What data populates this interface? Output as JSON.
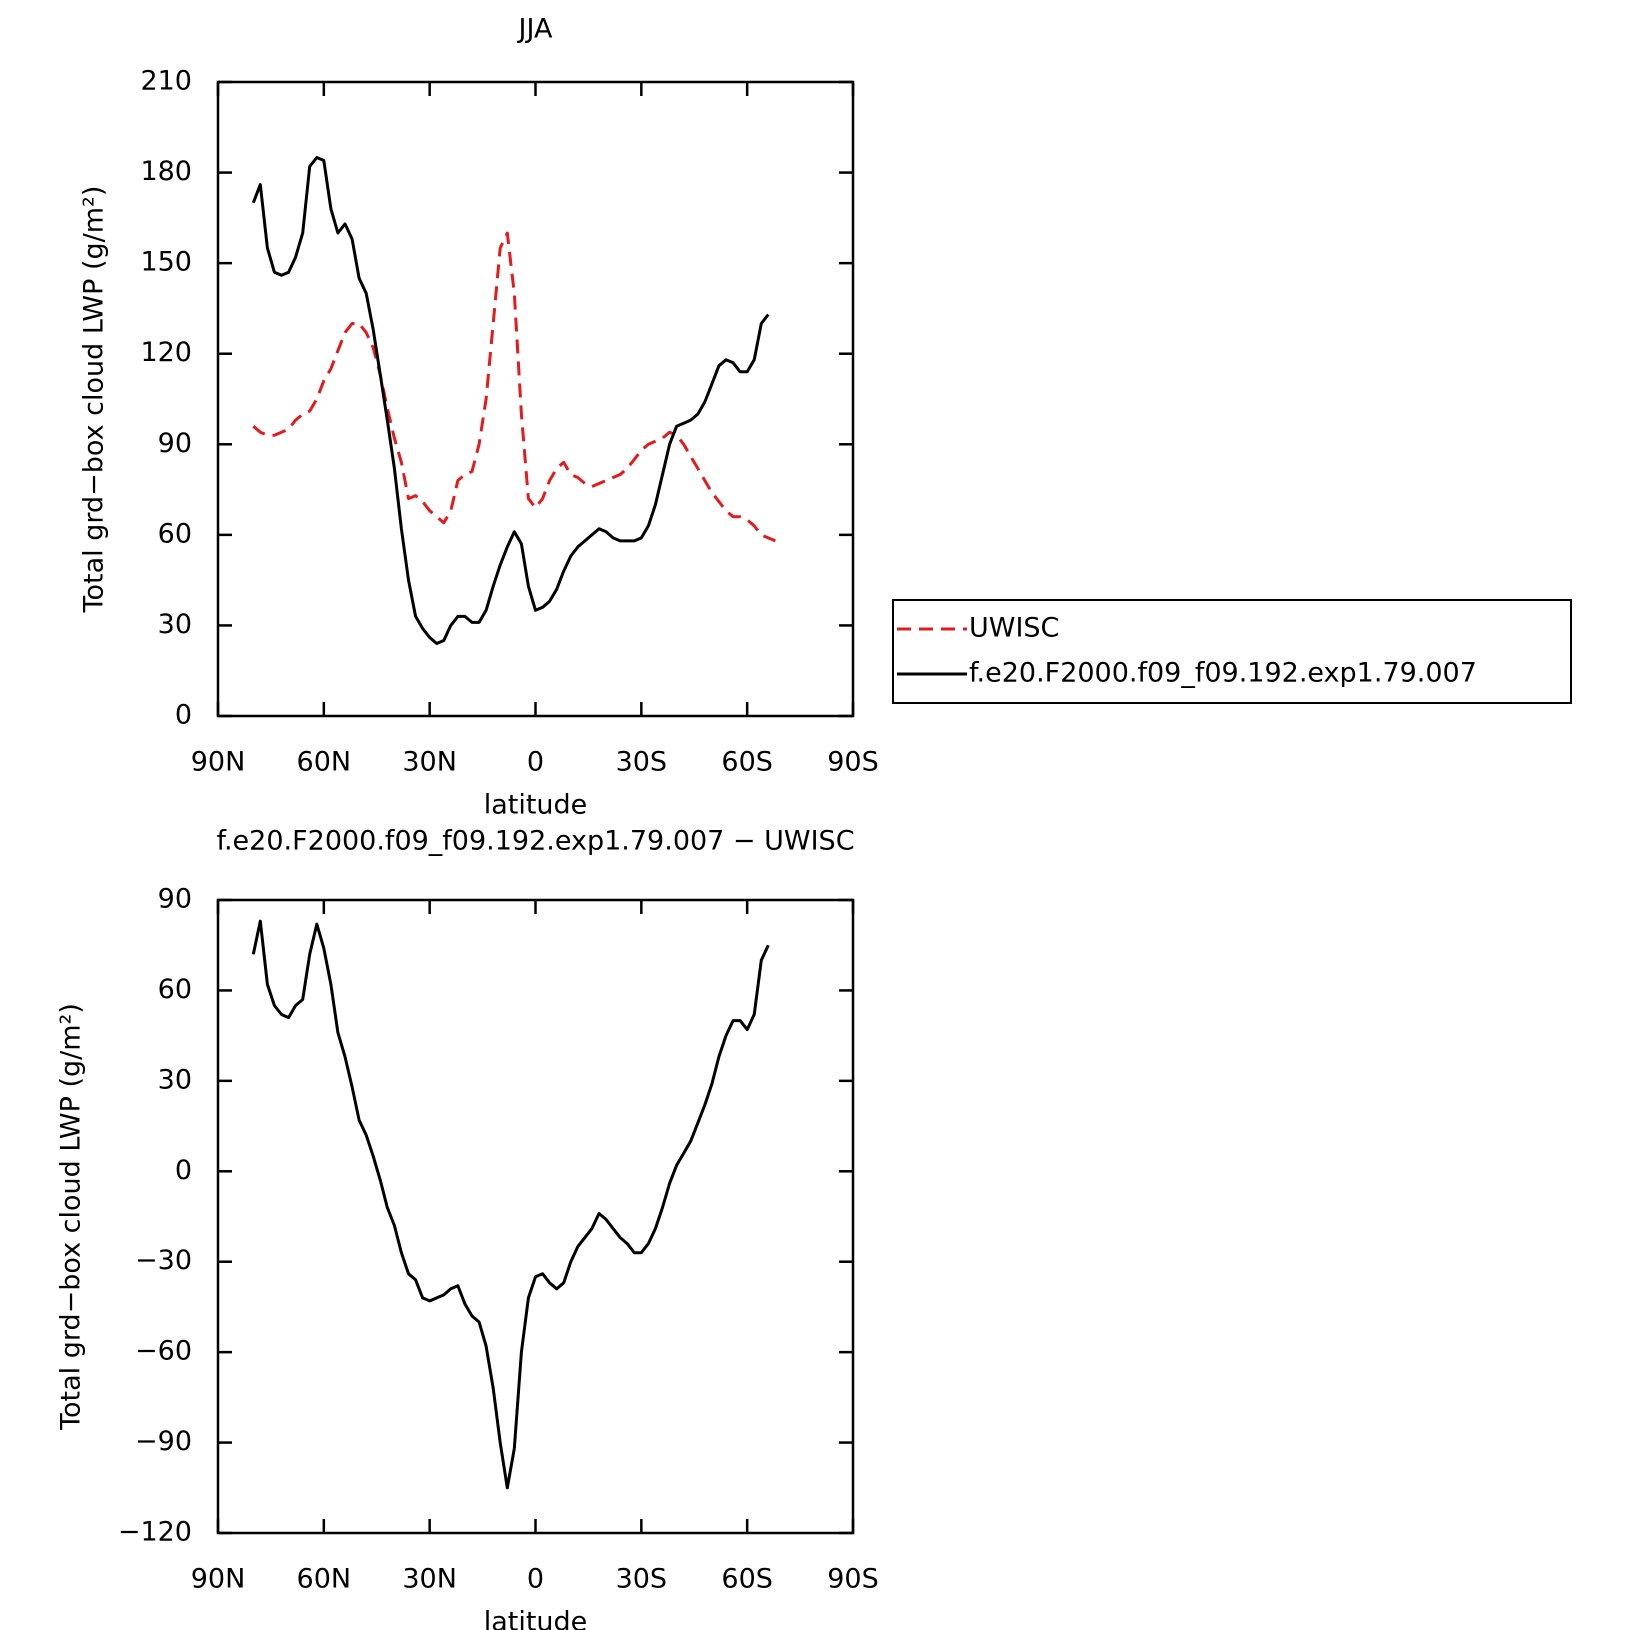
{
  "chart_data": [
    {
      "type": "line",
      "title": "JJA",
      "xlabel": "latitude",
      "ylabel": "Total grd−box cloud LWP (g/m²)",
      "xlim": [
        90,
        -90
      ],
      "ylim": [
        0,
        210
      ],
      "xticks": [
        {
          "value": 90,
          "label": "90N"
        },
        {
          "value": 60,
          "label": "60N"
        },
        {
          "value": 30,
          "label": "30N"
        },
        0,
        {
          "value": -30,
          "label": "30S"
        },
        {
          "value": -60,
          "label": "60S"
        },
        {
          "value": -90,
          "label": "90S"
        }
      ],
      "yticks": [
        0,
        30,
        60,
        90,
        120,
        150,
        180,
        210
      ],
      "legend": "outside-right",
      "x": [
        80,
        78,
        76,
        74,
        72,
        70,
        68,
        66,
        64,
        62,
        60,
        58,
        56,
        54,
        52,
        50,
        48,
        46,
        44,
        42,
        40,
        38,
        36,
        34,
        32,
        30,
        28,
        26,
        24,
        22,
        20,
        18,
        16,
        14,
        12,
        10,
        8,
        6,
        4,
        2,
        0,
        -2,
        -4,
        -6,
        -8,
        -10,
        -12,
        -14,
        -16,
        -18,
        -20,
        -22,
        -24,
        -26,
        -28,
        -30,
        -32,
        -34,
        -36,
        -38,
        -40,
        -42,
        -44,
        -46,
        -48,
        -50,
        -52,
        -54,
        -56,
        -58,
        -60,
        -62,
        -64,
        -66,
        -68
      ],
      "series": [
        {
          "name": "UWISC",
          "color": "#e41a1c",
          "dash": "dashed",
          "values": [
            96,
            94,
            93,
            93,
            94,
            95,
            98,
            100,
            101,
            105,
            111,
            115,
            121,
            127,
            130,
            130,
            127,
            122,
            113,
            102,
            92,
            84,
            72,
            73,
            71,
            68,
            66,
            64,
            68,
            78,
            80,
            81,
            90,
            105,
            130,
            155,
            160,
            140,
            100,
            72,
            69,
            72,
            78,
            82,
            84,
            80,
            79,
            77,
            76,
            77,
            78,
            79,
            80,
            82,
            85,
            88,
            90,
            91,
            92,
            94,
            93,
            90,
            86,
            82,
            78,
            74,
            71,
            68,
            66,
            66,
            65,
            63,
            60,
            59,
            58
          ]
        },
        {
          "name": "f.e20.F2000.f09_f09.192.exp1.79.007",
          "color": "#000000",
          "dash": "solid",
          "values": [
            170,
            176,
            155,
            147,
            146,
            147,
            152,
            160,
            182,
            185,
            184,
            168,
            160,
            163,
            158,
            145,
            140,
            128,
            113,
            98,
            82,
            62,
            45,
            33,
            29,
            26,
            24,
            25,
            30,
            33,
            33,
            31,
            31,
            35,
            43,
            50,
            56,
            61,
            57,
            43,
            35,
            36,
            38,
            42,
            48,
            53,
            56,
            58,
            60,
            62,
            61,
            59,
            58,
            58,
            58,
            59,
            63,
            70,
            80,
            90,
            96,
            97,
            98,
            100,
            104,
            110,
            116,
            118,
            117,
            114,
            114,
            118,
            130,
            133,
            null
          ]
        }
      ]
    },
    {
      "type": "line",
      "title": "f.e20.F2000.f09_f09.192.exp1.79.007 − UWISC",
      "xlabel": "latitude",
      "ylabel": "Total grd−box cloud LWP (g/m²)",
      "xlim": [
        90,
        -90
      ],
      "ylim": [
        -120,
        90
      ],
      "xticks": [
        {
          "value": 90,
          "label": "90N"
        },
        {
          "value": 60,
          "label": "60N"
        },
        {
          "value": 30,
          "label": "30N"
        },
        0,
        {
          "value": -30,
          "label": "30S"
        },
        {
          "value": -60,
          "label": "60S"
        },
        {
          "value": -90,
          "label": "90S"
        }
      ],
      "yticks": [
        {
          "value": -120,
          "label": "−120"
        },
        {
          "value": -90,
          "label": "−90"
        },
        {
          "value": -60,
          "label": "−60"
        },
        {
          "value": -30,
          "label": "−30"
        },
        0,
        30,
        60,
        90
      ],
      "x": [
        80,
        78,
        76,
        74,
        72,
        70,
        68,
        66,
        64,
        62,
        60,
        58,
        56,
        54,
        52,
        50,
        48,
        46,
        44,
        42,
        40,
        38,
        36,
        34,
        32,
        30,
        28,
        26,
        24,
        22,
        20,
        18,
        16,
        14,
        12,
        10,
        8,
        6,
        4,
        2,
        0,
        -2,
        -4,
        -6,
        -8,
        -10,
        -12,
        -14,
        -16,
        -18,
        -20,
        -22,
        -24,
        -26,
        -28,
        -30,
        -32,
        -34,
        -36,
        -38,
        -40,
        -42,
        -44,
        -46,
        -48,
        -50,
        -52,
        -54,
        -56,
        -58,
        -60,
        -62,
        -64,
        -66
      ],
      "series": [
        {
          "color": "#000000",
          "dash": "solid",
          "values": [
            72,
            83,
            62,
            55,
            52,
            51,
            55,
            57,
            72,
            82,
            74,
            62,
            46,
            38,
            28,
            17,
            12,
            5,
            -3,
            -12,
            -18,
            -27,
            -34,
            -36,
            -42,
            -43,
            -42,
            -41,
            -39,
            -38,
            -44,
            -48,
            -50,
            -58,
            -72,
            -90,
            -105,
            -92,
            -60,
            -42,
            -35,
            -34,
            -37,
            -39,
            -37,
            -30,
            -25,
            -22,
            -19,
            -14,
            -16,
            -19,
            -22,
            -24,
            -27,
            -27,
            -24,
            -19,
            -12,
            -4,
            2,
            6,
            10,
            16,
            22,
            29,
            38,
            45,
            50,
            50,
            47,
            52,
            70,
            75
          ]
        }
      ]
    }
  ]
}
